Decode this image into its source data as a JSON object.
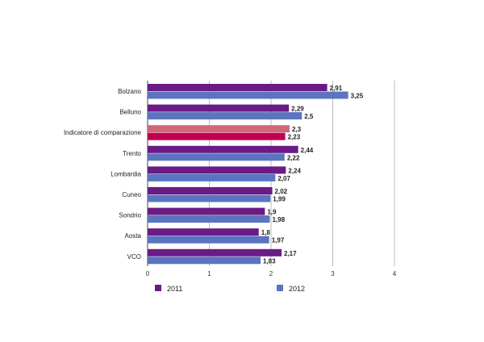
{
  "chart_data": {
    "type": "bar",
    "orientation": "horizontal",
    "categories": [
      "Bolzano",
      "Belluno",
      "Indicatore di comparazione",
      "Trento",
      "Lombardia",
      "Cuneo",
      "Sondrio",
      "Aosta",
      "VCO"
    ],
    "series": [
      {
        "name": "2011",
        "values": [
          2.91,
          2.29,
          2.3,
          2.44,
          2.24,
          2.02,
          1.9,
          1.8,
          2.17
        ],
        "labels": [
          "2,91",
          "2,29",
          "2,3",
          "2,44",
          "2,24",
          "2,02",
          "1,9",
          "1,8",
          "2,17"
        ],
        "color": "#6a1b86"
      },
      {
        "name": "2012",
        "values": [
          3.25,
          2.5,
          2.23,
          2.22,
          2.07,
          1.99,
          1.98,
          1.97,
          1.83
        ],
        "labels": [
          "3,25",
          "2,5",
          "2,23",
          "2,22",
          "2,07",
          "1,99",
          "1,98",
          "1,97",
          "1,83"
        ],
        "color": "#5b74c0"
      }
    ],
    "highlight": {
      "category": "Indicatore di comparazione",
      "colors": [
        "#d0687a",
        "#c3004f"
      ]
    },
    "xlim": [
      0,
      4
    ],
    "xticks": [
      "0",
      "1",
      "2",
      "3",
      "4"
    ],
    "grid": true,
    "legend": "bottom"
  }
}
